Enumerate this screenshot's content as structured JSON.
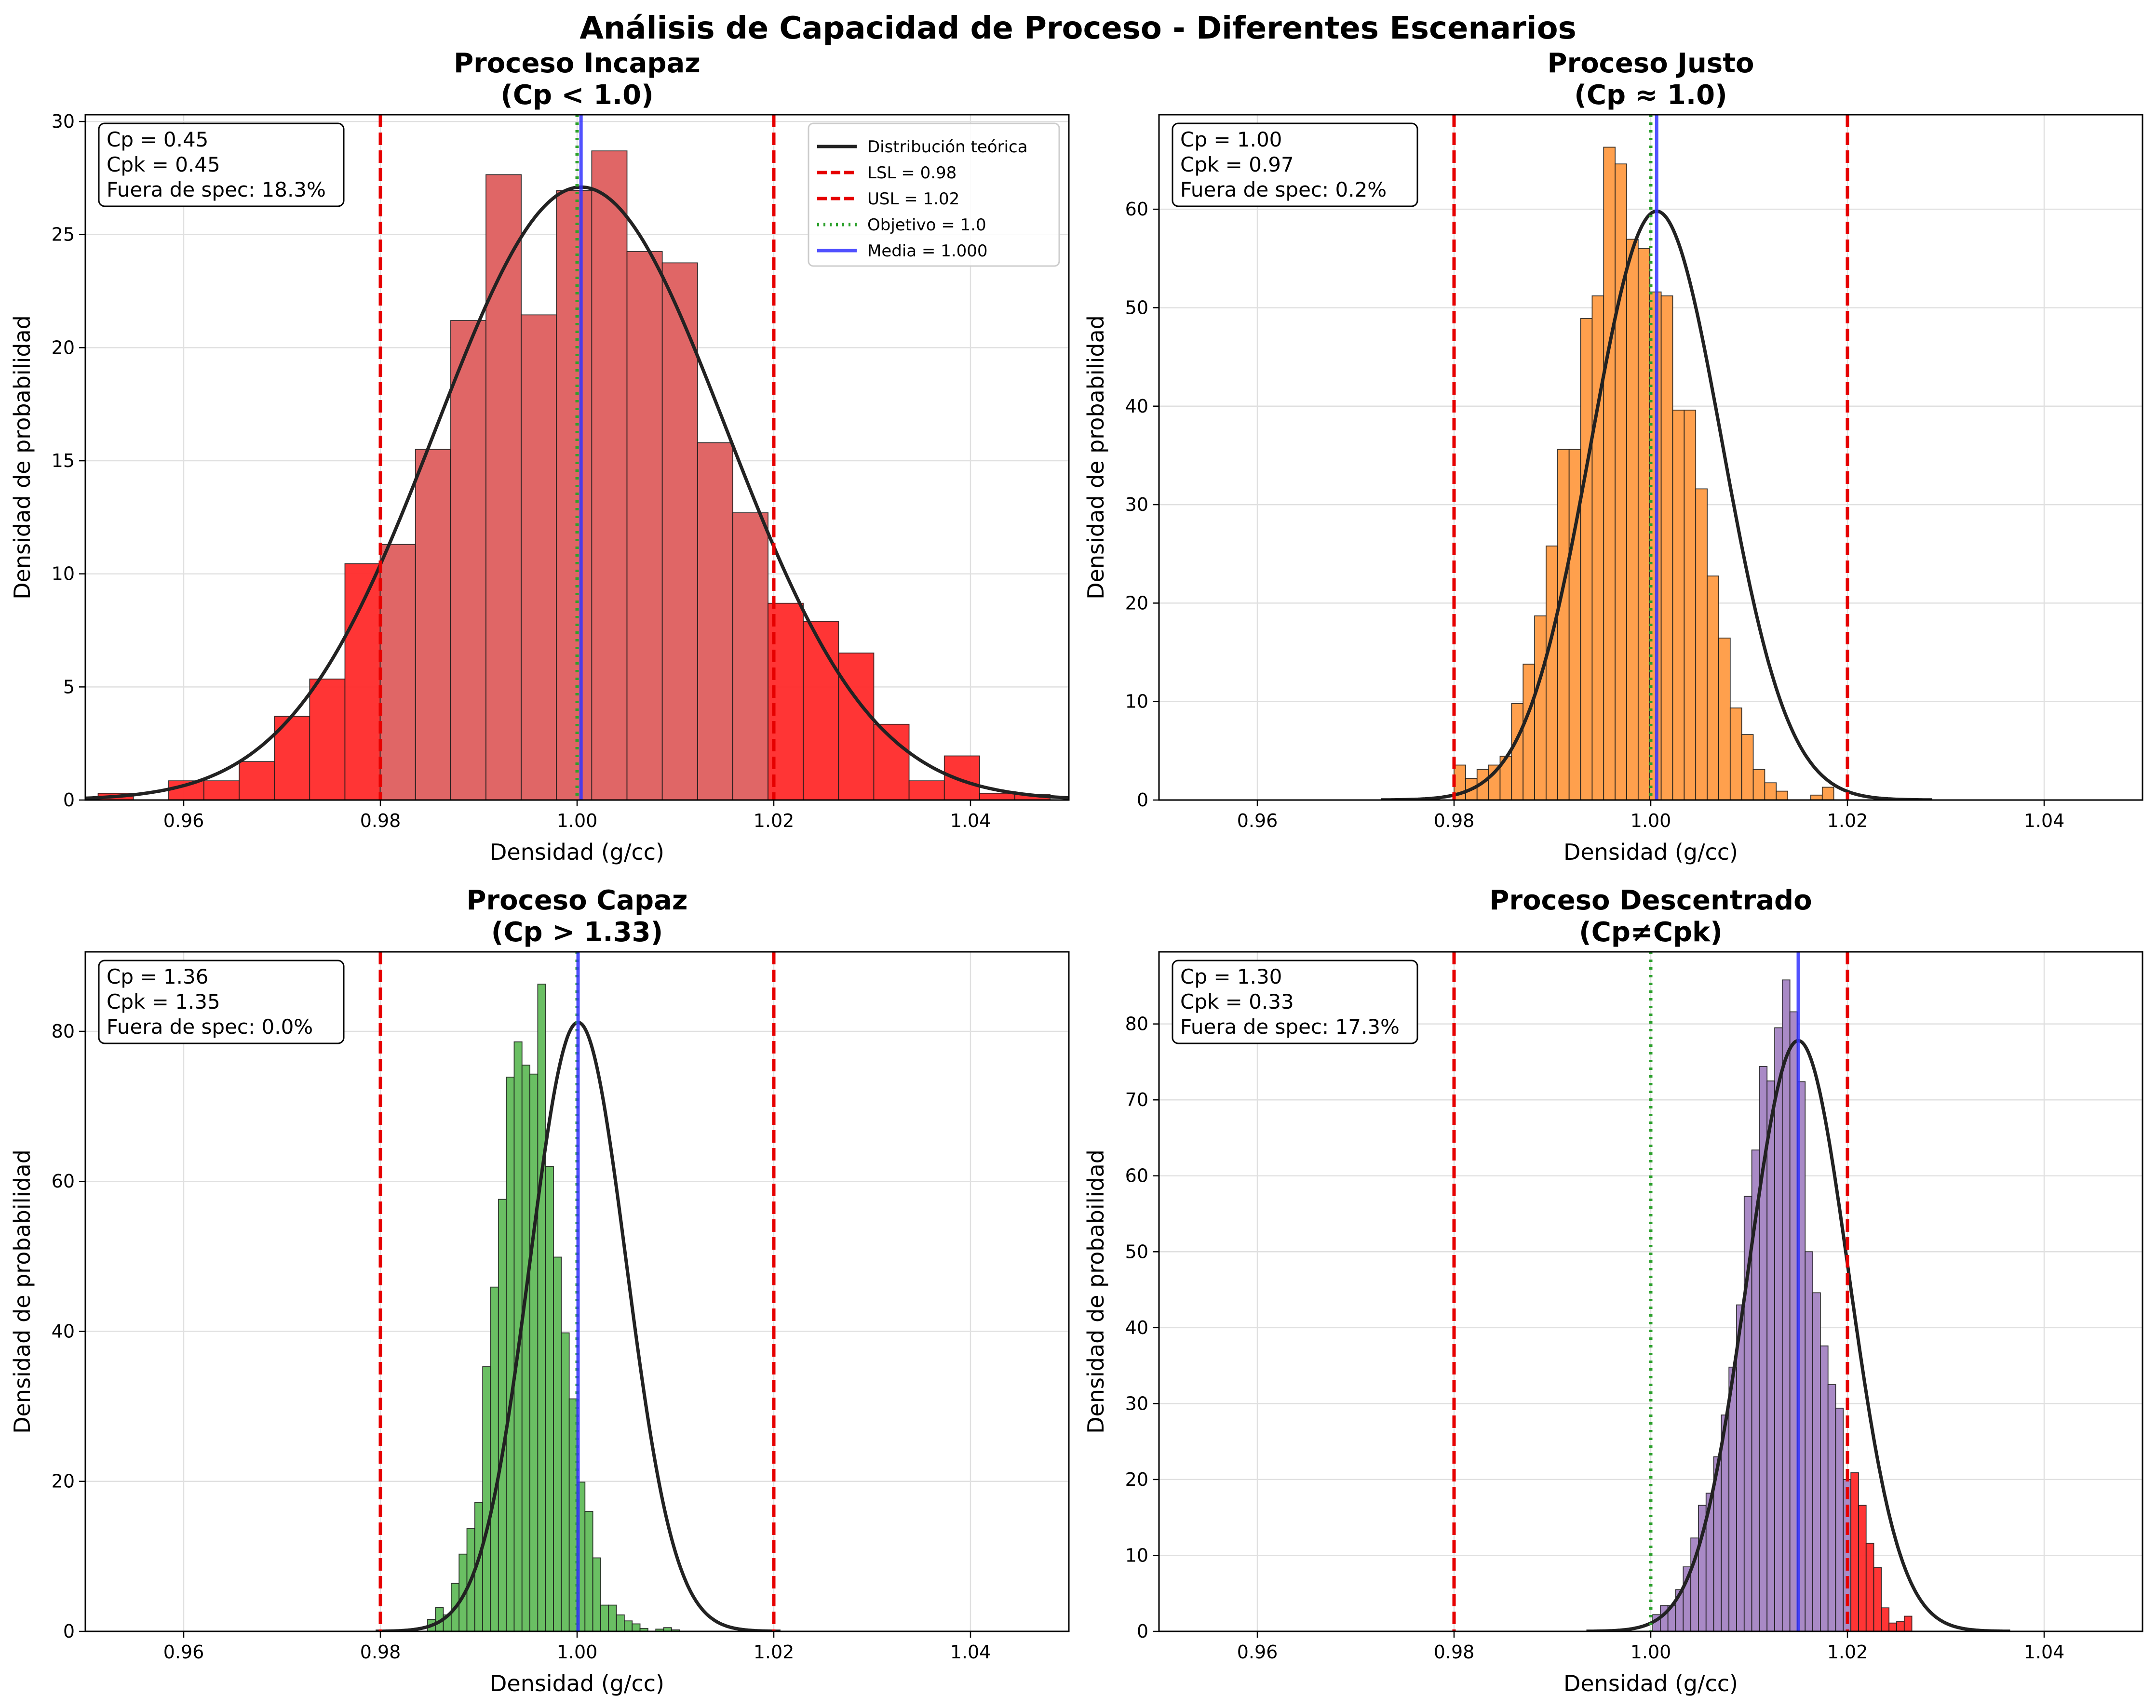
{
  "figure": {
    "title": "Análisis de Capacidad de Proceso - Diferentes Escenarios"
  },
  "colors": {
    "lsl_usl": "#e60000",
    "target": "#2ca02c",
    "mean": "#3333ff",
    "curve": "#222222",
    "out_of_spec": "#ff2a2a"
  },
  "chart_data": [
    {
      "type": "bar",
      "subtype": "histogram",
      "title": "Proceso Incapaz",
      "subtitle": "(Cp < 1.0)",
      "xlabel": "Densidad (g/cc)",
      "ylabel": "Densidad de probabilidad",
      "xlim": [
        0.95,
        1.05
      ],
      "ylim": [
        0,
        30.3
      ],
      "xticks": [
        "0.96",
        "0.98",
        "1.00",
        "1.02",
        "1.04"
      ],
      "yticks": [
        "0",
        "5",
        "10",
        "15",
        "20",
        "25",
        "30"
      ],
      "grid": true,
      "bar_color": "#e06666",
      "stats": {
        "cp": "Cp = 0.45",
        "cpk": "Cpk = 0.45",
        "out": "Fuera de spec: 18.3%"
      },
      "lsl": 0.98,
      "usl": 1.02,
      "target": 1.0,
      "mean": 1.0004,
      "curve": {
        "mu": 1.0004,
        "sigma": 0.01475,
        "peak": 27.1
      },
      "bin_start": 0.9513,
      "bin_width": 0.003585,
      "values": [
        0.3,
        0,
        0.85,
        0.85,
        1.7,
        3.7,
        5.35,
        10.45,
        11.3,
        15.5,
        21.2,
        27.65,
        21.45,
        26.95,
        28.7,
        24.25,
        23.75,
        15.8,
        12.7,
        8.7,
        7.9,
        6.5,
        3.35,
        0.85,
        1.95,
        0.3,
        0.25
      ],
      "legend": {
        "placement": "top-right",
        "entries": [
          "Distribución teórica",
          "LSL = 0.98",
          "USL = 1.02",
          "Objetivo = 1.0",
          "Media = 1.000"
        ]
      }
    },
    {
      "type": "bar",
      "subtype": "histogram",
      "title": "Proceso Justo",
      "subtitle": "(Cp ≈ 1.0)",
      "xlabel": "Densidad (g/cc)",
      "ylabel": "Densidad de probabilidad",
      "xlim": [
        0.95,
        1.05
      ],
      "ylim": [
        0,
        69.6
      ],
      "xticks": [
        "0.96",
        "0.98",
        "1.00",
        "1.02",
        "1.04"
      ],
      "yticks": [
        "0",
        "10",
        "20",
        "30",
        "40",
        "50",
        "60"
      ],
      "grid": true,
      "bar_color": "#ffa04d",
      "stats": {
        "cp": "Cp = 1.00",
        "cpk": "Cpk = 0.97",
        "out": "Fuera de spec: 0.2%"
      },
      "lsl": 0.98,
      "usl": 1.02,
      "target": 1.0,
      "mean": 1.0006,
      "curve": {
        "mu": 1.0006,
        "sigma": 0.00667,
        "peak": 59.8
      },
      "bin_start": 0.98,
      "bin_width": 0.00117,
      "values": [
        3.55,
        2.2,
        3.1,
        3.55,
        4.45,
        9.8,
        13.8,
        18.7,
        25.8,
        35.6,
        35.6,
        48.9,
        51.2,
        66.3,
        64.6,
        56.95,
        56.0,
        51.6,
        51.2,
        39.6,
        39.6,
        31.6,
        22.75,
        16.45,
        9.35,
        6.65,
        3.1,
        1.75,
        0.9,
        0,
        0,
        0.5,
        1.3
      ],
      "legend": {
        "placement": "none",
        "entries": []
      }
    },
    {
      "type": "bar",
      "subtype": "histogram",
      "title": "Proceso Capaz",
      "subtitle": "(Cp > 1.33)",
      "xlabel": "Densidad (g/cc)",
      "ylabel": "Densidad de probabilidad",
      "xlim": [
        0.95,
        1.05
      ],
      "ylim": [
        0,
        90.6
      ],
      "xticks": [
        "0.96",
        "0.98",
        "1.00",
        "1.02",
        "1.04"
      ],
      "yticks": [
        "0",
        "20",
        "40",
        "60",
        "80"
      ],
      "grid": true,
      "bar_color": "#6abf63",
      "stats": {
        "cp": "Cp = 1.36",
        "cpk": "Cpk = 1.35",
        "out": "Fuera de spec: 0.0%"
      },
      "lsl": 0.98,
      "usl": 1.02,
      "target": 1.0,
      "mean": 1.0001,
      "curve": {
        "mu": 1.0001,
        "sigma": 0.0049,
        "peak": 81.2
      },
      "bin_start": 0.9848,
      "bin_width": 0.0008,
      "values": [
        1.6,
        3.2,
        2.2,
        6.4,
        10.3,
        13.7,
        17.2,
        35.3,
        45.9,
        57.6,
        73.9,
        78.6,
        75.5,
        74.3,
        86.3,
        62.0,
        49.9,
        39.8,
        31.0,
        19.9,
        16.0,
        9.8,
        3.5,
        3.5,
        2.2,
        1.4,
        1.0,
        0.4,
        0,
        0.3,
        0.5,
        0.2
      ],
      "legend": {
        "placement": "none",
        "entries": []
      }
    },
    {
      "type": "bar",
      "subtype": "histogram",
      "title": "Proceso Descentrado",
      "subtitle": "(Cp≠Cpk)",
      "xlabel": "Densidad (g/cc)",
      "ylabel": "Densidad de probabilidad",
      "xlim": [
        0.95,
        1.05
      ],
      "ylim": [
        0,
        89.5
      ],
      "xticks": [
        "0.96",
        "0.98",
        "1.00",
        "1.02",
        "1.04"
      ],
      "yticks": [
        "0",
        "10",
        "20",
        "30",
        "40",
        "50",
        "60",
        "70",
        "80"
      ],
      "grid": true,
      "bar_color": "#a98ac6",
      "stats": {
        "cp": "Cp = 1.30",
        "cpk": "Cpk = 0.33",
        "out": "Fuera de spec: 17.3%"
      },
      "lsl": 0.98,
      "usl": 1.02,
      "target": 1.0,
      "mean": 1.015,
      "curve": {
        "mu": 1.015,
        "sigma": 0.00513,
        "peak": 77.8
      },
      "bin_start": 1.0002,
      "bin_width": 0.000775,
      "values": [
        2.2,
        3.4,
        3.4,
        5.5,
        8.5,
        12.3,
        16.6,
        18.2,
        23.0,
        28.5,
        34.8,
        43.0,
        57.3,
        63.4,
        74.4,
        72.5,
        79.5,
        85.8,
        81.6,
        72.4,
        50.0,
        44.6,
        37.6,
        32.5,
        29.4,
        20.0,
        20.9,
        16.6,
        11.6,
        8.4,
        3.1,
        1.1,
        1.3,
        2.0
      ],
      "legend": {
        "placement": "none",
        "entries": []
      }
    }
  ]
}
